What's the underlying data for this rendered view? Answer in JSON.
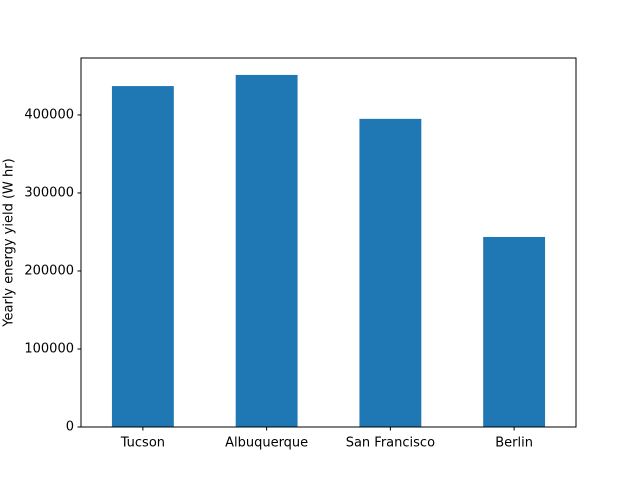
{
  "chart_data": {
    "type": "bar",
    "categories": [
      "Tucson",
      "Albuquerque",
      "San Francisco",
      "Berlin"
    ],
    "values": [
      437000,
      451300,
      395000,
      243600
    ],
    "color": "#1f77b4",
    "ylabel": "Yearly energy yield (W hr)",
    "ylim": [
      0,
      473000
    ],
    "yticks": [
      0,
      100000,
      200000,
      300000,
      400000
    ],
    "grid": false
  }
}
